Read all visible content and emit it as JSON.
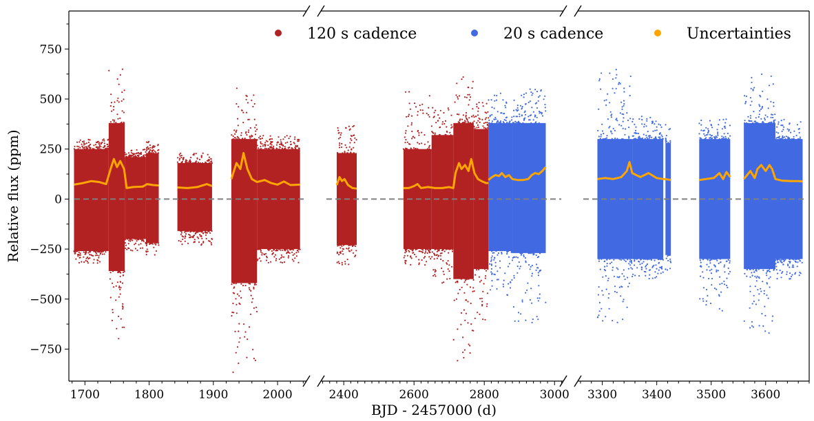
{
  "chart_data": {
    "type": "scatter",
    "title": "",
    "xlabel": "BJD - 2457000 (d)",
    "ylabel": "Relative flux (ppm)",
    "ylim": [
      -910,
      940
    ],
    "y_ticks": [
      -750,
      -500,
      -250,
      0,
      250,
      500,
      750
    ],
    "broken_x_axis": true,
    "x_panels": [
      {
        "xlim": [
          1675,
          2045
        ],
        "ticks": [
          1700,
          1800,
          1900,
          2000
        ]
      },
      {
        "xlim": [
          2335,
          3025
        ],
        "ticks": [
          2400,
          2600,
          2800,
          3000
        ]
      },
      {
        "xlim": [
          3255,
          3680
        ],
        "ticks": [
          3300,
          3400,
          3500,
          3600
        ]
      }
    ],
    "reference_line": {
      "y": 0,
      "style": "dashed",
      "color": "#808080"
    },
    "legend": {
      "placement": "top-right"
    },
    "series": [
      {
        "name": "120 s cadence",
        "color": "#b22222",
        "segments": [
          {
            "x": [
              1683,
              1737
            ],
            "band": [
              -260,
              250
            ],
            "env_low": -320,
            "env_high": 300
          },
          {
            "x": [
              1737,
              1762
            ],
            "band": [
              -360,
              380
            ],
            "env_low": -770,
            "env_high": 650
          },
          {
            "x": [
              1762,
              1795
            ],
            "band": [
              -200,
              210
            ],
            "env_low": -260,
            "env_high": 250
          },
          {
            "x": [
              1795,
              1815
            ],
            "band": [
              -220,
              230
            ],
            "env_low": -290,
            "env_high": 290
          },
          {
            "x": [
              1844,
              1898
            ],
            "band": [
              -160,
              180
            ],
            "env_low": -230,
            "env_high": 230
          },
          {
            "x": [
              1928,
              1968
            ],
            "band": [
              -420,
              300
            ],
            "env_low": -880,
            "env_high": 580
          },
          {
            "x": [
              1968,
              2035
            ],
            "band": [
              -250,
              250
            ],
            "env_low": -320,
            "env_high": 320
          },
          {
            "x": [
              2380,
              2437
            ],
            "band": [
              -230,
              230
            ],
            "env_low": -340,
            "env_high": 370
          },
          {
            "x": [
              2570,
              2650
            ],
            "band": [
              -250,
              250
            ],
            "env_low": -330,
            "env_high": 540
          },
          {
            "x": [
              2650,
              2712
            ],
            "band": [
              -250,
              320
            ],
            "env_low": -420,
            "env_high": 470
          },
          {
            "x": [
              2712,
              2770
            ],
            "band": [
              -400,
              380
            ],
            "env_low": -820,
            "env_high": 640
          },
          {
            "x": [
              2770,
              2812
            ],
            "band": [
              -350,
              350
            ],
            "env_low": -680,
            "env_high": 500
          }
        ]
      },
      {
        "name": "20 s cadence",
        "color": "#4169e1",
        "segments": [
          {
            "x": [
              2812,
              2880
            ],
            "band": [
              -260,
              380
            ],
            "env_low": -480,
            "env_high": 530
          },
          {
            "x": [
              2880,
              2975
            ],
            "band": [
              -270,
              380
            ],
            "env_low": -620,
            "env_high": 550
          },
          {
            "x": [
              3291,
              3355
            ],
            "band": [
              -300,
              300
            ],
            "env_low": -620,
            "env_high": 660
          },
          {
            "x": [
              3355,
              3412
            ],
            "band": [
              -300,
              300
            ],
            "env_low": -400,
            "env_high": 420
          },
          {
            "x": [
              3416,
              3426
            ],
            "band": [
              -280,
              280
            ],
            "env_low": -380,
            "env_high": 380
          },
          {
            "x": [
              3478,
              3535
            ],
            "band": [
              -300,
              300
            ],
            "env_low": -560,
            "env_high": 400
          },
          {
            "x": [
              3560,
              3618
            ],
            "band": [
              -350,
              380
            ],
            "env_low": -680,
            "env_high": 640
          },
          {
            "x": [
              3618,
              3668
            ],
            "band": [
              -300,
              300
            ],
            "env_low": -400,
            "env_high": 400
          }
        ]
      },
      {
        "name": "Uncertainties",
        "color": "#ffa500",
        "points": [
          [
            1683,
            72
          ],
          [
            1697,
            80
          ],
          [
            1710,
            90
          ],
          [
            1722,
            85
          ],
          [
            1733,
            75
          ],
          [
            1740,
            150
          ],
          [
            1745,
            200
          ],
          [
            1750,
            160
          ],
          [
            1755,
            190
          ],
          [
            1761,
            150
          ],
          [
            1765,
            55
          ],
          [
            1775,
            60
          ],
          [
            1790,
            62
          ],
          [
            1797,
            75
          ],
          [
            1806,
            70
          ],
          [
            1815,
            68
          ],
          [
            1844,
            58
          ],
          [
            1860,
            55
          ],
          [
            1875,
            60
          ],
          [
            1890,
            75
          ],
          [
            1898,
            65
          ],
          [
            1928,
            100
          ],
          [
            1936,
            180
          ],
          [
            1942,
            150
          ],
          [
            1947,
            230
          ],
          [
            1953,
            150
          ],
          [
            1960,
            100
          ],
          [
            1968,
            85
          ],
          [
            1980,
            95
          ],
          [
            1990,
            80
          ],
          [
            2000,
            72
          ],
          [
            2010,
            88
          ],
          [
            2020,
            70
          ],
          [
            2035,
            72
          ],
          [
            2380,
            70
          ],
          [
            2388,
            110
          ],
          [
            2395,
            90
          ],
          [
            2402,
            100
          ],
          [
            2412,
            70
          ],
          [
            2425,
            55
          ],
          [
            2437,
            52
          ],
          [
            2570,
            55
          ],
          [
            2585,
            55
          ],
          [
            2600,
            65
          ],
          [
            2610,
            75
          ],
          [
            2620,
            55
          ],
          [
            2640,
            60
          ],
          [
            2660,
            55
          ],
          [
            2680,
            55
          ],
          [
            2700,
            60
          ],
          [
            2712,
            55
          ],
          [
            2718,
            130
          ],
          [
            2728,
            180
          ],
          [
            2735,
            150
          ],
          [
            2745,
            170
          ],
          [
            2755,
            140
          ],
          [
            2763,
            200
          ],
          [
            2772,
            130
          ],
          [
            2782,
            100
          ],
          [
            2792,
            90
          ],
          [
            2805,
            80
          ],
          [
            2812,
            80
          ],
          [
            2812,
            95
          ],
          [
            2822,
            110
          ],
          [
            2832,
            120
          ],
          [
            2842,
            115
          ],
          [
            2850,
            130
          ],
          [
            2860,
            110
          ],
          [
            2870,
            120
          ],
          [
            2880,
            100
          ],
          [
            2895,
            95
          ],
          [
            2910,
            95
          ],
          [
            2925,
            100
          ],
          [
            2935,
            120
          ],
          [
            2945,
            130
          ],
          [
            2955,
            125
          ],
          [
            2965,
            140
          ],
          [
            2975,
            160
          ],
          [
            3291,
            100
          ],
          [
            3305,
            105
          ],
          [
            3320,
            100
          ],
          [
            3335,
            110
          ],
          [
            3345,
            140
          ],
          [
            3350,
            185
          ],
          [
            3355,
            130
          ],
          [
            3370,
            110
          ],
          [
            3385,
            130
          ],
          [
            3400,
            105
          ],
          [
            3412,
            100
          ],
          [
            3416,
            100
          ],
          [
            3426,
            95
          ],
          [
            3478,
            95
          ],
          [
            3490,
            100
          ],
          [
            3505,
            105
          ],
          [
            3515,
            130
          ],
          [
            3522,
            100
          ],
          [
            3528,
            135
          ],
          [
            3535,
            110
          ],
          [
            3560,
            100
          ],
          [
            3572,
            140
          ],
          [
            3580,
            105
          ],
          [
            3585,
            150
          ],
          [
            3592,
            170
          ],
          [
            3600,
            140
          ],
          [
            3607,
            170
          ],
          [
            3612,
            150
          ],
          [
            3618,
            100
          ],
          [
            3630,
            92
          ],
          [
            3645,
            90
          ],
          [
            3660,
            90
          ],
          [
            3668,
            88
          ]
        ]
      }
    ]
  }
}
